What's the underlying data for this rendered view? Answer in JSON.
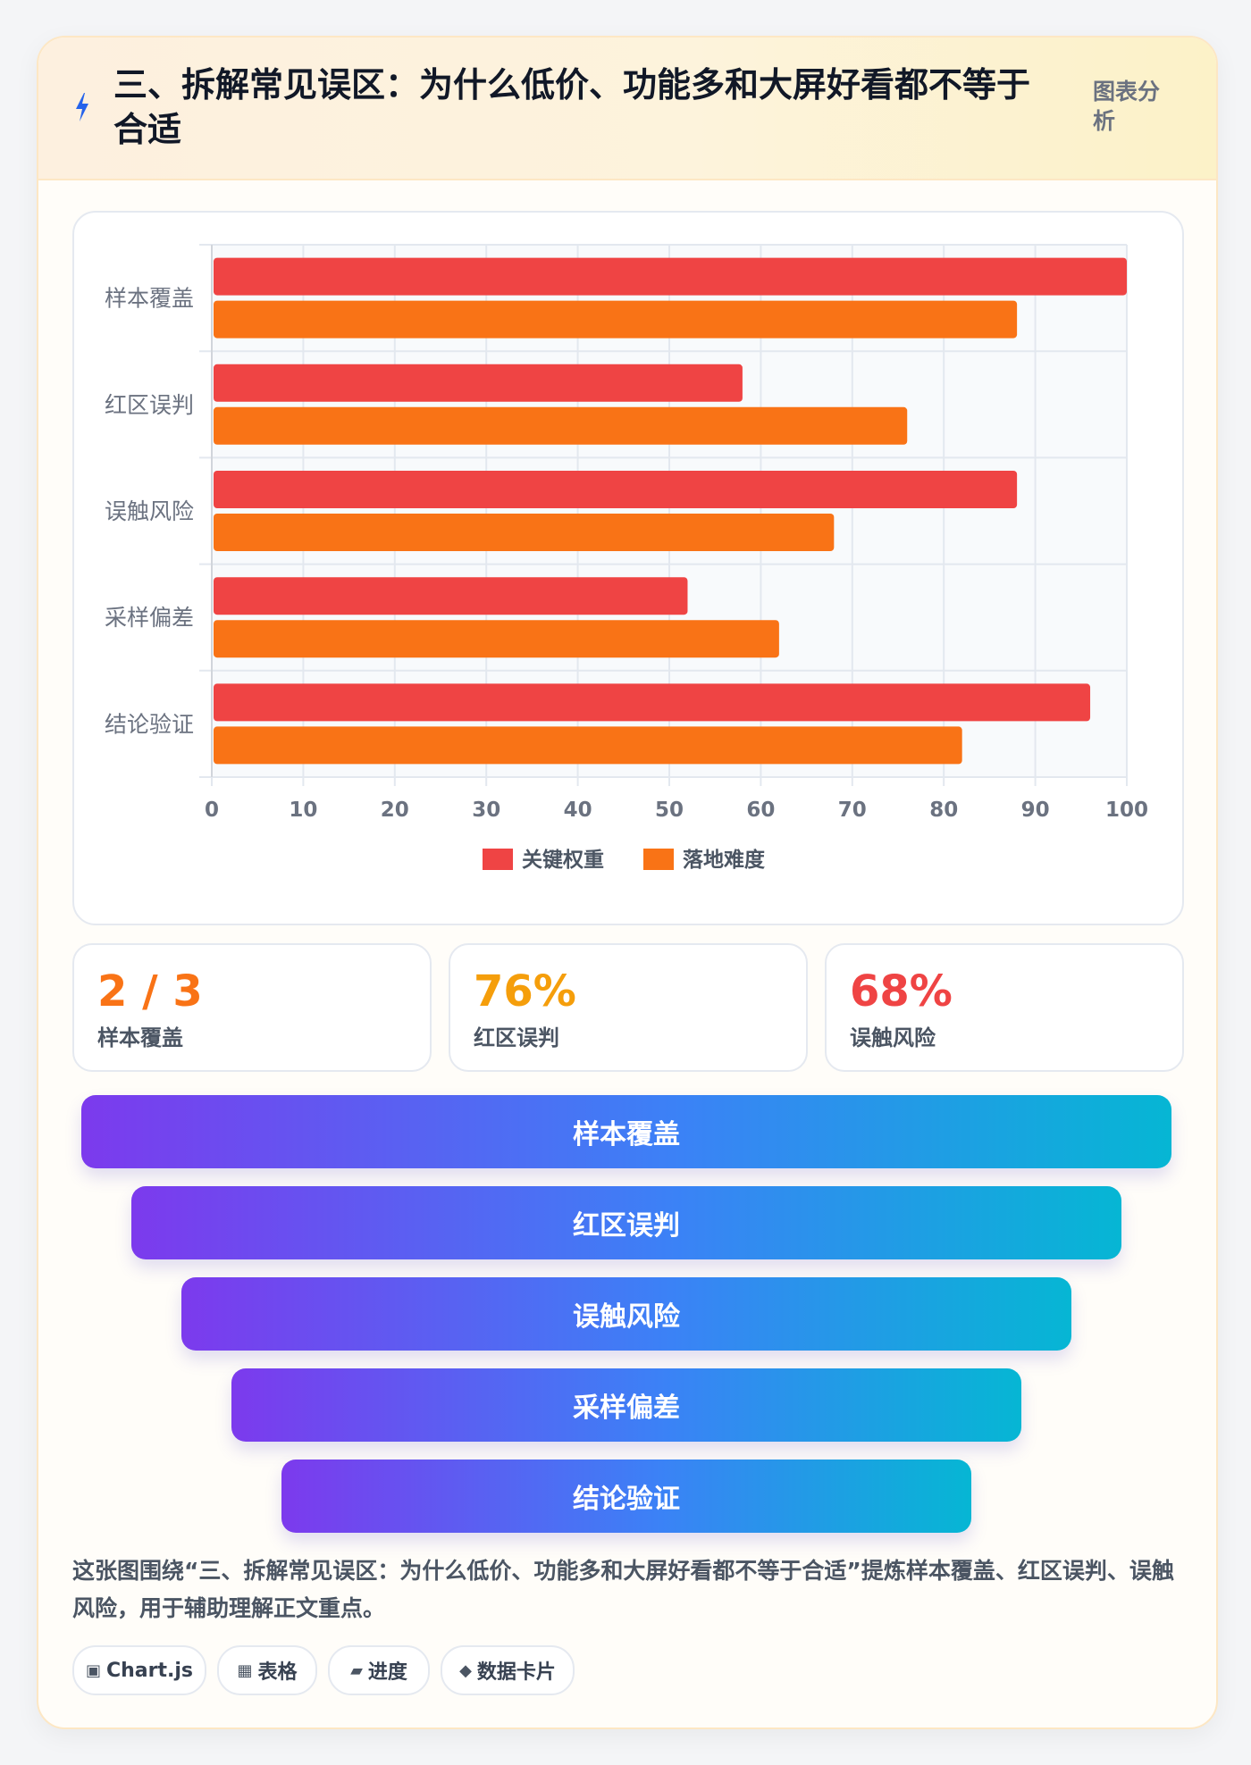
{
  "header": {
    "title": "三、拆解常见误区：为什么低价、功能多和大屏好看都不等于合适",
    "tag": "图表分析"
  },
  "chart_data": {
    "type": "bar",
    "orientation": "horizontal",
    "categories": [
      "样本覆盖",
      "红区误判",
      "误触风险",
      "采样偏差",
      "结论验证"
    ],
    "series": [
      {
        "name": "关键权重",
        "color": "#ef4444",
        "values": [
          100,
          58,
          88,
          52,
          96
        ]
      },
      {
        "name": "落地难度",
        "color": "#f97316",
        "values": [
          88,
          76,
          68,
          62,
          82
        ]
      }
    ],
    "xlim": [
      0,
      100
    ],
    "x_ticks": [
      0,
      10,
      20,
      30,
      40,
      50,
      60,
      70,
      80,
      90,
      100
    ],
    "grid": true,
    "legend_position": "bottom"
  },
  "stats": [
    {
      "value": "2 / 3",
      "label": "样本覆盖",
      "color": "#f97316"
    },
    {
      "value": "76%",
      "label": "红区误判",
      "color": "#f59e0b"
    },
    {
      "value": "68%",
      "label": "误触风险",
      "color": "#ef4444"
    }
  ],
  "funnel": [
    "样本覆盖",
    "红区误判",
    "误触风险",
    "采样偏差",
    "结论验证"
  ],
  "caption": "这张图围绕“三、拆解常见误区：为什么低价、功能多和大屏好看都不等于合适”提炼样本覆盖、红区误判、误触风险，用于辅助理解正文重点。",
  "chips": [
    {
      "icon": "▣",
      "icon_name": "chart-icon",
      "label": "Chart.js"
    },
    {
      "icon": "▦",
      "icon_name": "table-icon",
      "label": "表格"
    },
    {
      "icon": "▰",
      "icon_name": "progress-icon",
      "label": "进度"
    },
    {
      "icon": "◆",
      "icon_name": "data-card-icon",
      "label": "数据卡片"
    }
  ]
}
